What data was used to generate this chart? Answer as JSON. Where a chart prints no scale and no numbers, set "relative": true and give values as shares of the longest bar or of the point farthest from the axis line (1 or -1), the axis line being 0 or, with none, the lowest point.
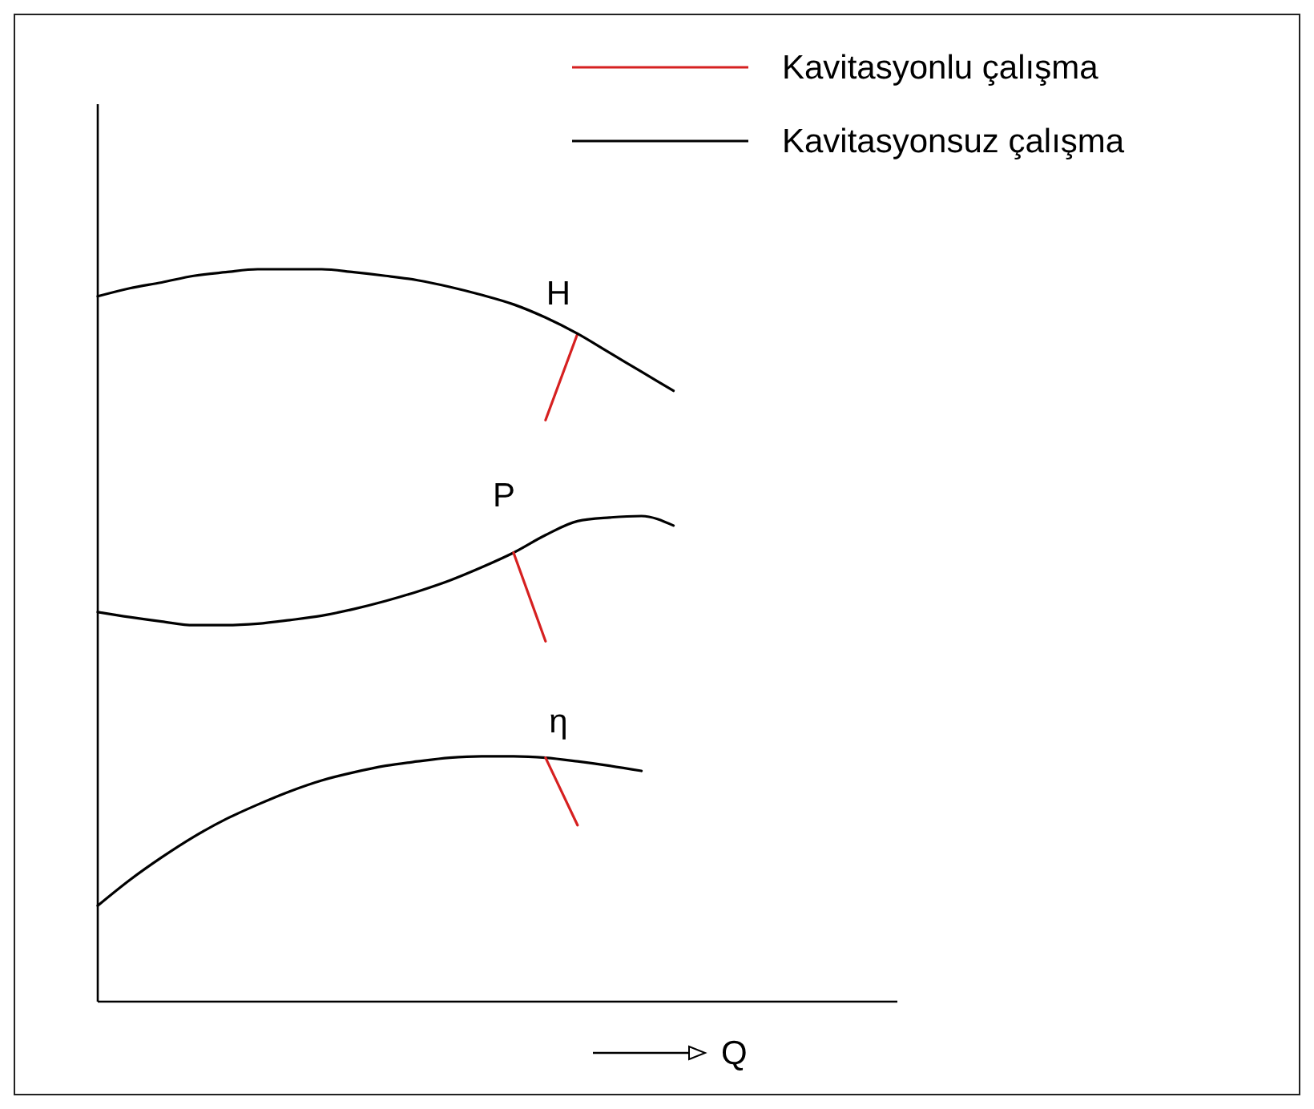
{
  "chart_data": {
    "type": "line",
    "relative": true,
    "xlabel": "Q",
    "legend": "top right",
    "marker": "none",
    "line_style": "solid",
    "categories": [
      null,
      null,
      null,
      null,
      null,
      null,
      null,
      null,
      null,
      null,
      null,
      null,
      null,
      null,
      null,
      null,
      null,
      null,
      null,
      null,
      null,
      null,
      null,
      null,
      null,
      null
    ],
    "series": [
      {
        "name": "Kavitasyonlu çalışma",
        "color": "#d62020",
        "values": [
          null,
          null,
          null,
          null,
          null,
          null,
          null,
          null,
          null,
          null,
          null,
          null,
          null,
          null,
          0.794,
          0.912,
          null,
          null,
          null,
          null,
          null,
          null,
          null,
          null,
          null,
          null
        ]
      },
      {
        "name": "Kavitasyonsuz çalışma",
        "color": "#000000",
        "values": [
          0.963,
          0.974,
          0.982,
          0.991,
          0.996,
          1.0,
          1.0,
          1.0,
          0.996,
          0.991,
          0.985,
          0.976,
          0.965,
          0.952,
          0.934,
          0.912,
          0.886,
          0.86,
          0.834,
          null,
          null,
          null,
          null,
          null,
          null,
          null
        ]
      },
      {
        "color": "#000000",
        "values": [
          0.532,
          0.525,
          0.519,
          0.514,
          0.514,
          0.516,
          0.521,
          0.527,
          0.536,
          0.547,
          0.56,
          0.575,
          0.593,
          0.613,
          0.637,
          0.656,
          0.661,
          0.663,
          0.65,
          null,
          null,
          null,
          null,
          null,
          null,
          null
        ]
      },
      {
        "color": "#000000",
        "values": [
          0.131,
          0.166,
          0.197,
          0.225,
          0.249,
          0.269,
          0.287,
          0.302,
          0.313,
          0.322,
          0.328,
          0.333,
          0.335,
          0.335,
          0.333,
          0.328,
          0.322,
          0.315,
          null,
          null,
          null,
          null,
          null,
          null,
          null,
          null
        ]
      },
      {
        "color": "#d62020",
        "values": [
          null,
          null,
          null,
          null,
          null,
          null,
          null,
          null,
          null,
          null,
          null,
          null,
          null,
          0.613,
          0.492,
          null,
          null,
          null,
          null,
          null,
          null,
          null,
          null,
          null,
          null,
          null
        ]
      },
      {
        "color": "#d62020",
        "values": [
          null,
          null,
          null,
          null,
          null,
          null,
          null,
          null,
          null,
          null,
          null,
          null,
          null,
          null,
          0.333,
          0.241,
          null,
          null,
          null,
          null,
          null,
          null,
          null,
          null,
          null,
          null
        ]
      }
    ],
    "annotations": [
      "H",
      "P",
      "η"
    ]
  }
}
